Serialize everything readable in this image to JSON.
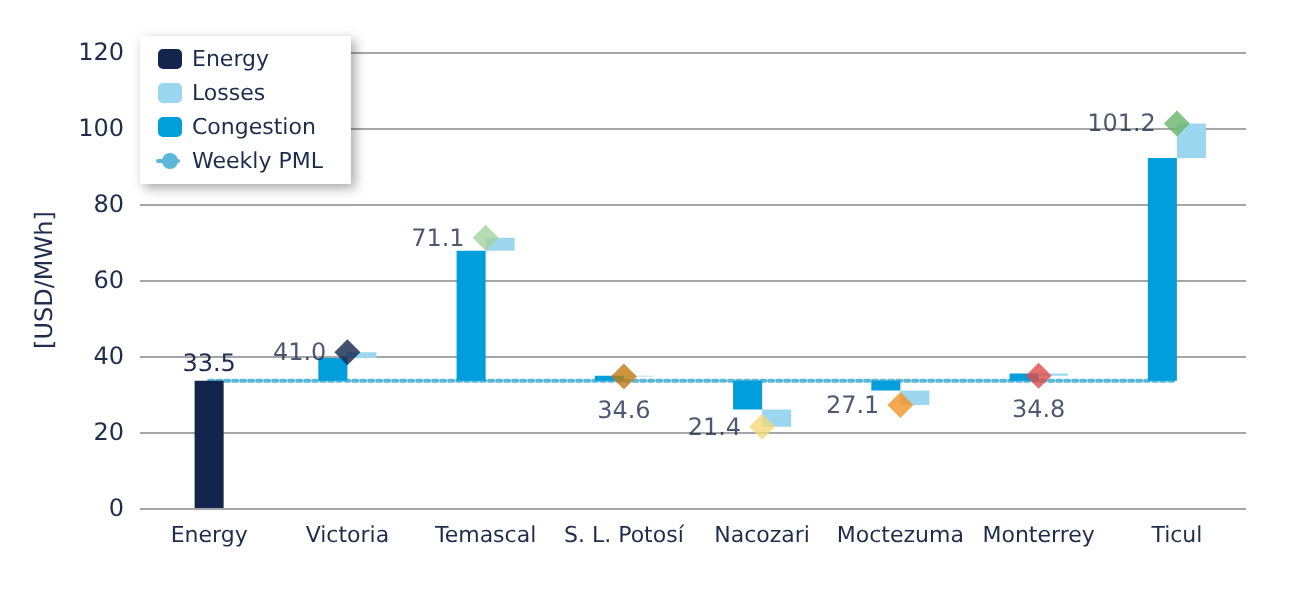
{
  "chart_data": {
    "type": "bar",
    "ylabel": "[USD/MWh]",
    "categories": [
      "Energy",
      "Victoria",
      "Temascal",
      "S. L. Potosí",
      "Nacozari",
      "Moctezuma",
      "Monterrey",
      "Ticul"
    ],
    "series": [
      {
        "name": "Energy",
        "color": "#13254d",
        "values": [
          33.5,
          null,
          null,
          null,
          null,
          null,
          null,
          null
        ],
        "base": [
          0,
          null,
          null,
          null,
          null,
          null,
          null,
          null
        ],
        "value_labels": [
          "33.5",
          null,
          null,
          null,
          null,
          null,
          null,
          null
        ]
      },
      {
        "name": "Losses",
        "color": "#9dd7ef",
        "values": [
          null,
          1.5,
          3.4,
          -0.2,
          -4.5,
          -3.8,
          -0.6,
          9.1
        ],
        "base": [
          null,
          39.5,
          67.7,
          34.8,
          25.9,
          30.9,
          35.4,
          92.1
        ]
      },
      {
        "name": "Congestion",
        "color": "#009fdb",
        "values": [
          null,
          6.0,
          34.2,
          1.3,
          -7.6,
          -2.6,
          1.9,
          58.6
        ],
        "base": [
          null,
          33.5,
          33.5,
          33.5,
          33.5,
          33.5,
          33.5,
          33.5
        ]
      },
      {
        "name": "Weekly PML",
        "type": "line",
        "color": "#5bb8d8",
        "line_style": "dotted",
        "marker": "none",
        "values": [
          33.5,
          33.5,
          33.5,
          33.5,
          33.5,
          33.5,
          33.5,
          33.5
        ]
      },
      {
        "type": "scatter",
        "marker": "diamond",
        "x": [
          "Victoria",
          "Temascal",
          "S. L. Potosí",
          "Nacozari",
          "Moctezuma",
          "Monterrey",
          "Ticul"
        ],
        "values": [
          41.0,
          71.1,
          34.6,
          21.4,
          27.1,
          34.8,
          101.2
        ],
        "colors": [
          "#13254d",
          "#a3d39c",
          "#c07a10",
          "#f2d878",
          "#f39325",
          "#e04a4a",
          "#6ab46a"
        ],
        "value_labels": [
          "41.0",
          "71.1",
          "34.6",
          "21.4",
          "27.1",
          "34.8",
          "101.2"
        ]
      }
    ],
    "ylim": [
      0,
      120
    ],
    "yticks": [
      0,
      20,
      40,
      60,
      80,
      100,
      120
    ],
    "grid": "y",
    "legend": "top left"
  }
}
